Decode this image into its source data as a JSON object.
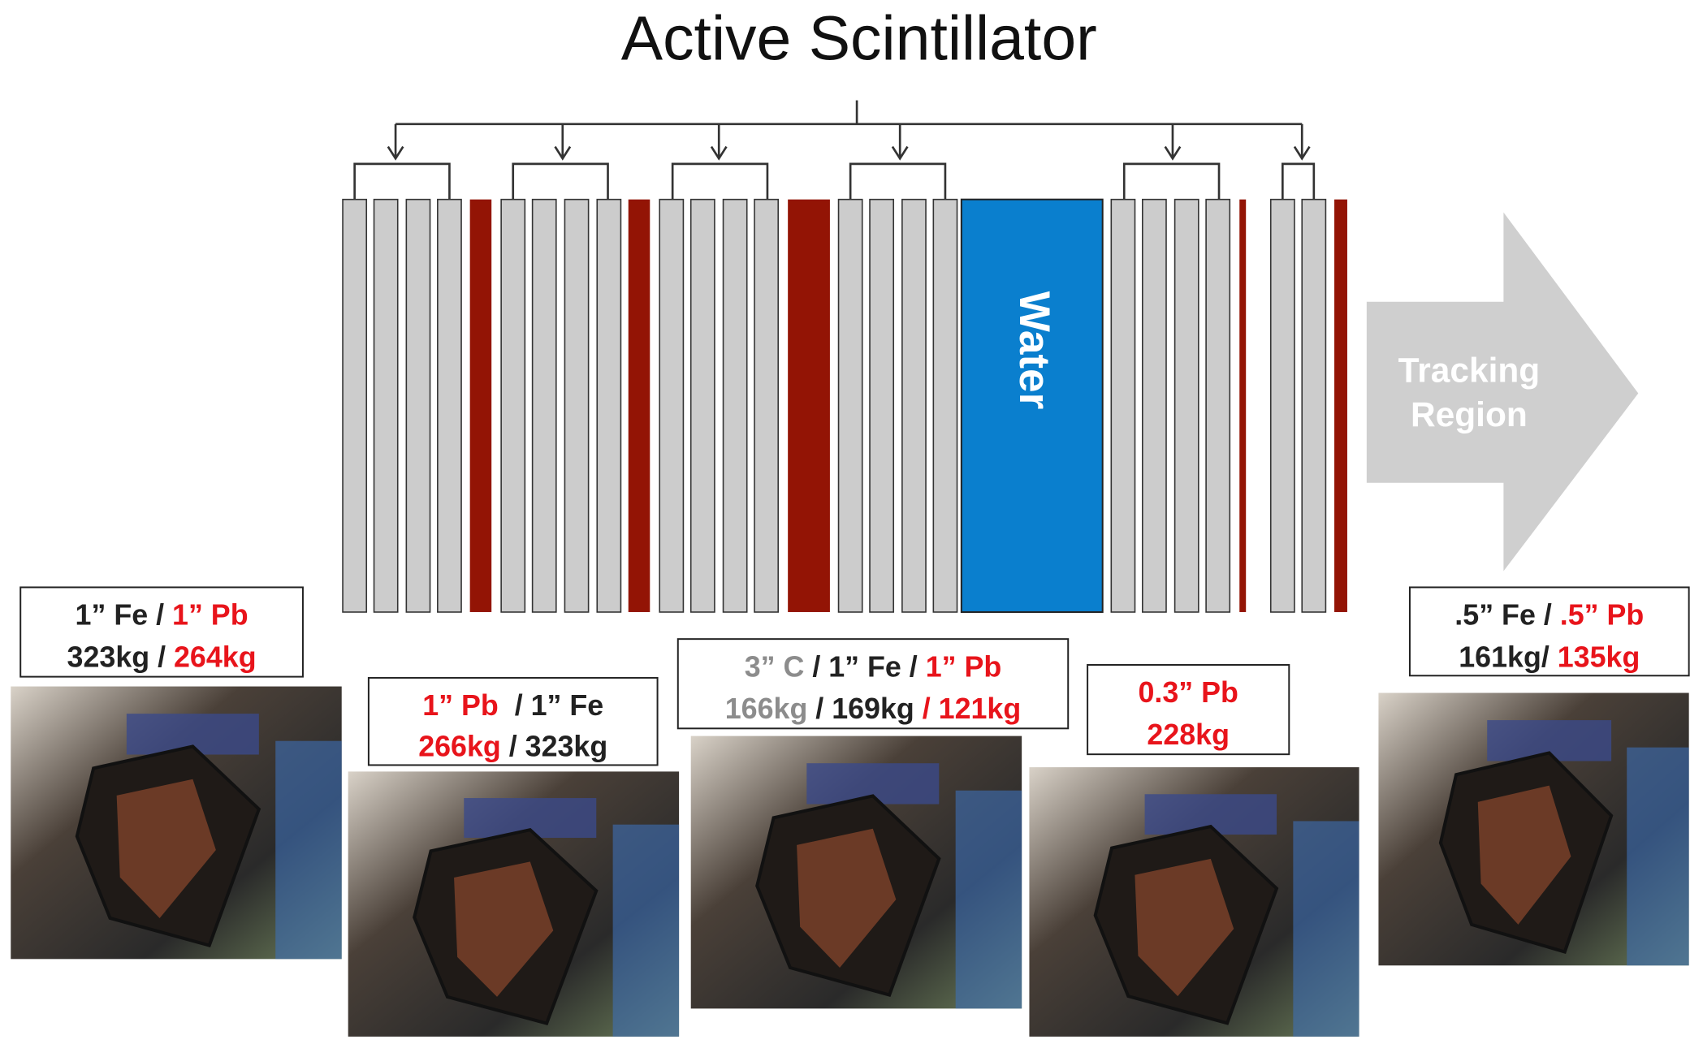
{
  "title": "Active Scintillator",
  "water": "Water",
  "arrow_label": [
    "Tracking",
    "Region"
  ],
  "targets": [
    {
      "lines": [
        [
          {
            "text": "1” Fe / ",
            "color": "#222222"
          },
          {
            "text": "1” Pb",
            "color": "#e8141b"
          }
        ],
        [
          {
            "text": "323kg / ",
            "color": "#222222"
          },
          {
            "text": "264kg",
            "color": "#e8141b"
          }
        ]
      ]
    },
    {
      "lines": [
        [
          {
            "text": "1” Pb ",
            "color": "#e8141b"
          },
          {
            "text": " / 1” Fe",
            "color": "#222222"
          }
        ],
        [
          {
            "text": "266kg",
            "color": "#e8141b"
          },
          {
            "text": " / 323kg",
            "color": "#222222"
          }
        ]
      ]
    },
    {
      "lines": [
        [
          {
            "text": "3” C",
            "color": "#8c8c8c"
          },
          {
            "text": " / 1” Fe / ",
            "color": "#222222"
          },
          {
            "text": "1” Pb",
            "color": "#e8141b"
          }
        ],
        [
          {
            "text": "166kg",
            "color": "#8c8c8c"
          },
          {
            "text": " / 169kg ",
            "color": "#222222"
          },
          {
            "text": "/ 121kg",
            "color": "#e8141b"
          }
        ]
      ]
    },
    {
      "lines": [
        [
          {
            "text": "0.3” Pb",
            "color": "#e8141b"
          }
        ],
        [
          {
            "text": "228kg",
            "color": "#e8141b"
          }
        ]
      ]
    },
    {
      "lines": [
        [
          {
            "text": ".5” Fe / ",
            "color": "#222222"
          },
          {
            "text": ".5” Pb",
            "color": "#e8141b"
          }
        ],
        [
          {
            "text": "161kg/ ",
            "color": "#222222"
          },
          {
            "text": "135kg",
            "color": "#e8141b"
          }
        ]
      ]
    }
  ]
}
